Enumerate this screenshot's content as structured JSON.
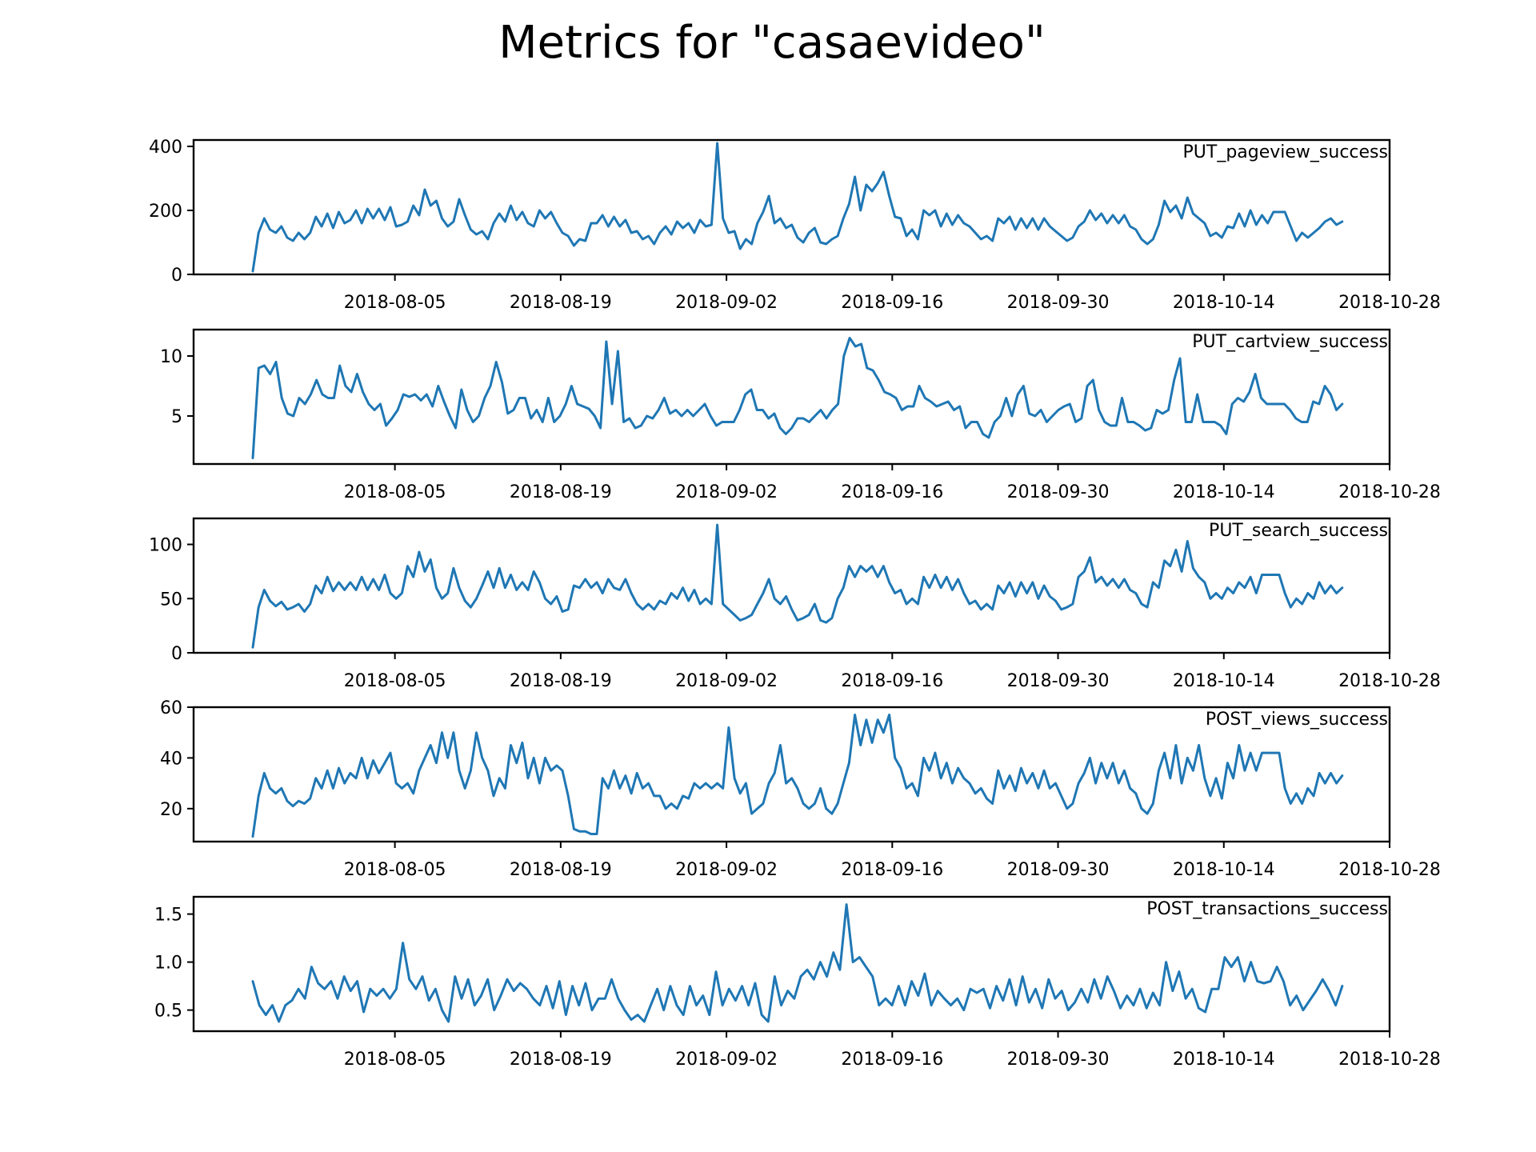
{
  "figure": {
    "title": "Metrics for \"casaevideo\"",
    "line_color": "#1f77b4"
  },
  "chart_data": [
    {
      "type": "line",
      "title": "",
      "xlabel": "",
      "ylabel": "",
      "series": [
        {
          "name": "PUT_pageview_success",
          "x_start": "2018-07-24",
          "x_end": "2018-10-24",
          "values": [
            10,
            130,
            175,
            140,
            130,
            150,
            115,
            105,
            130,
            110,
            130,
            180,
            150,
            190,
            145,
            195,
            160,
            170,
            200,
            160,
            205,
            175,
            205,
            170,
            210,
            150,
            155,
            165,
            215,
            185,
            265,
            215,
            230,
            175,
            150,
            165,
            235,
            185,
            140,
            125,
            135,
            110,
            160,
            190,
            165,
            215,
            170,
            195,
            160,
            150,
            200,
            175,
            195,
            160,
            130,
            120,
            90,
            110,
            105,
            160,
            160,
            185,
            150,
            180,
            150,
            170,
            130,
            135,
            110,
            120,
            95,
            130,
            150,
            125,
            165,
            145,
            160,
            130,
            170,
            150,
            155,
            410,
            175,
            130,
            135,
            80,
            110,
            95,
            160,
            195,
            245,
            160,
            175,
            145,
            155,
            115,
            100,
            130,
            145,
            100,
            95,
            110,
            120,
            175,
            220,
            305,
            200,
            280,
            260,
            285,
            320,
            245,
            180,
            175,
            120,
            140,
            110,
            200,
            185,
            200,
            150,
            190,
            155,
            185,
            160,
            150,
            130,
            110,
            120,
            105,
            175,
            160,
            180,
            140,
            175,
            145,
            175,
            140,
            175,
            150,
            135,
            120,
            105,
            115,
            150,
            165,
            200,
            170,
            190,
            160,
            185,
            160,
            185,
            150,
            140,
            110,
            95,
            110,
            155,
            230,
            195,
            215,
            175,
            240,
            190,
            175,
            160,
            120,
            130,
            115,
            150,
            145,
            190,
            150,
            200,
            155,
            185,
            160,
            195,
            195,
            195,
            150,
            105,
            130,
            115,
            130,
            145,
            165,
            175,
            155,
            165
          ]
        }
      ],
      "ylim": [
        0,
        420
      ],
      "yticks": [
        0,
        200,
        400
      ],
      "xticks": [
        "2018-08-05",
        "2018-08-19",
        "2018-09-02",
        "2018-09-16",
        "2018-09-30",
        "2018-10-14",
        "2018-10-28"
      ],
      "xlim": [
        "2018-07-19",
        "2018-10-28"
      ],
      "legend_position": "top-right"
    },
    {
      "type": "line",
      "title": "",
      "xlabel": "",
      "ylabel": "",
      "series": [
        {
          "name": "PUT_cartview_success",
          "x_start": "2018-07-24",
          "x_end": "2018-10-24",
          "values": [
            1.5,
            9.0,
            9.2,
            8.5,
            9.5,
            6.5,
            5.2,
            5.0,
            6.5,
            6.0,
            6.8,
            8.0,
            6.8,
            6.5,
            6.5,
            9.2,
            7.5,
            7.0,
            8.5,
            7.0,
            6.0,
            5.5,
            6.0,
            4.2,
            4.8,
            5.5,
            6.8,
            6.6,
            6.8,
            6.3,
            6.8,
            5.8,
            7.5,
            6.2,
            5.0,
            4.0,
            7.2,
            5.5,
            4.5,
            5.0,
            6.5,
            7.5,
            9.5,
            7.8,
            5.2,
            5.5,
            6.5,
            6.5,
            4.8,
            5.5,
            4.5,
            6.5,
            4.5,
            5.0,
            6.0,
            7.5,
            6.0,
            5.8,
            5.6,
            5.0,
            4.0,
            11.2,
            6.0,
            10.4,
            4.5,
            4.8,
            4.0,
            4.2,
            5.0,
            4.8,
            5.5,
            6.5,
            5.2,
            5.5,
            5.0,
            5.5,
            5.0,
            5.5,
            6.0,
            5.0,
            4.2,
            4.5,
            4.5,
            4.5,
            5.5,
            6.8,
            7.2,
            5.5,
            5.5,
            4.8,
            5.2,
            4.0,
            3.5,
            4.0,
            4.8,
            4.8,
            4.5,
            5.0,
            5.5,
            4.8,
            5.5,
            6.0,
            10.0,
            11.5,
            10.8,
            11.0,
            9.0,
            8.8,
            8.0,
            7.0,
            6.8,
            6.5,
            5.5,
            5.8,
            5.8,
            7.5,
            6.5,
            6.2,
            5.8,
            6.0,
            6.2,
            5.5,
            5.8,
            4.0,
            4.5,
            4.5,
            3.5,
            3.2,
            4.5,
            5.0,
            6.5,
            5.0,
            6.8,
            7.5,
            5.2,
            5.0,
            5.5,
            4.5,
            5.0,
            5.5,
            5.8,
            6.0,
            4.5,
            4.8,
            7.5,
            8.0,
            5.5,
            4.5,
            4.2,
            4.2,
            6.5,
            4.5,
            4.5,
            4.2,
            3.8,
            4.0,
            5.5,
            5.2,
            5.5,
            8.0,
            9.8,
            4.5,
            4.5,
            6.8,
            4.5,
            4.5,
            4.5,
            4.2,
            3.5,
            6.0,
            6.5,
            6.2,
            7.0,
            8.5,
            6.5,
            6.0,
            6.0,
            6.0,
            6.0,
            5.5,
            4.8,
            4.5,
            4.5,
            6.2,
            6.0,
            7.5,
            6.8,
            5.5,
            6.0
          ]
        }
      ],
      "ylim": [
        1,
        12.2
      ],
      "yticks": [
        5,
        10
      ],
      "xticks": [
        "2018-08-05",
        "2018-08-19",
        "2018-09-02",
        "2018-09-16",
        "2018-09-30",
        "2018-10-14",
        "2018-10-28"
      ],
      "xlim": [
        "2018-07-19",
        "2018-10-28"
      ],
      "legend_position": "top-right"
    },
    {
      "type": "line",
      "title": "",
      "xlabel": "",
      "ylabel": "",
      "series": [
        {
          "name": "PUT_search_success",
          "x_start": "2018-07-24",
          "x_end": "2018-10-24",
          "values": [
            5,
            42,
            58,
            48,
            43,
            47,
            40,
            42,
            45,
            38,
            45,
            62,
            55,
            70,
            57,
            65,
            58,
            65,
            58,
            70,
            58,
            68,
            58,
            72,
            55,
            50,
            55,
            80,
            70,
            93,
            75,
            86,
            60,
            50,
            55,
            78,
            60,
            48,
            42,
            50,
            62,
            75,
            60,
            78,
            60,
            72,
            58,
            65,
            58,
            75,
            65,
            50,
            45,
            52,
            38,
            40,
            62,
            60,
            68,
            60,
            65,
            55,
            68,
            60,
            58,
            68,
            55,
            45,
            40,
            45,
            40,
            48,
            45,
            55,
            50,
            60,
            48,
            58,
            45,
            50,
            45,
            118,
            45,
            40,
            35,
            30,
            32,
            35,
            45,
            55,
            68,
            50,
            45,
            52,
            40,
            30,
            32,
            35,
            45,
            30,
            28,
            32,
            50,
            60,
            80,
            70,
            80,
            75,
            80,
            70,
            80,
            65,
            55,
            58,
            45,
            50,
            45,
            70,
            60,
            72,
            60,
            70,
            58,
            68,
            55,
            45,
            48,
            40,
            45,
            40,
            62,
            55,
            65,
            52,
            65,
            55,
            65,
            50,
            62,
            52,
            48,
            40,
            42,
            45,
            70,
            75,
            88,
            65,
            70,
            62,
            68,
            60,
            68,
            58,
            55,
            45,
            42,
            65,
            60,
            85,
            80,
            95,
            75,
            103,
            78,
            70,
            65,
            50,
            55,
            50,
            60,
            55,
            65,
            60,
            70,
            55,
            72,
            72,
            72,
            72,
            55,
            42,
            50,
            45,
            55,
            50,
            65,
            55,
            62,
            55,
            60
          ]
        }
      ],
      "ylim": [
        0,
        124
      ],
      "yticks": [
        0,
        50,
        100
      ],
      "xticks": [
        "2018-08-05",
        "2018-08-19",
        "2018-09-02",
        "2018-09-16",
        "2018-09-30",
        "2018-10-14",
        "2018-10-28"
      ],
      "xlim": [
        "2018-07-19",
        "2018-10-28"
      ],
      "legend_position": "top-right"
    },
    {
      "type": "line",
      "title": "",
      "xlabel": "",
      "ylabel": "",
      "series": [
        {
          "name": "POST_views_success",
          "x_start": "2018-07-24",
          "x_end": "2018-10-24",
          "values": [
            9,
            25,
            34,
            28,
            26,
            28,
            23,
            21,
            23,
            22,
            24,
            32,
            28,
            35,
            28,
            36,
            30,
            34,
            32,
            40,
            32,
            39,
            34,
            38,
            42,
            30,
            28,
            30,
            26,
            35,
            40,
            45,
            38,
            50,
            40,
            50,
            35,
            28,
            35,
            50,
            40,
            35,
            25,
            32,
            28,
            45,
            38,
            46,
            32,
            40,
            30,
            40,
            35,
            37,
            35,
            25,
            12,
            11,
            11,
            10,
            10,
            32,
            28,
            35,
            28,
            33,
            26,
            34,
            28,
            30,
            25,
            25,
            20,
            22,
            20,
            25,
            24,
            30,
            28,
            30,
            28,
            30,
            28,
            52,
            32,
            26,
            30,
            18,
            20,
            22,
            30,
            34,
            45,
            30,
            32,
            28,
            22,
            20,
            22,
            28,
            20,
            18,
            22,
            30,
            38,
            57,
            45,
            55,
            46,
            55,
            50,
            57,
            40,
            36,
            28,
            30,
            25,
            40,
            35,
            42,
            32,
            38,
            30,
            36,
            32,
            30,
            26,
            28,
            24,
            22,
            35,
            28,
            33,
            27,
            36,
            30,
            34,
            28,
            35,
            28,
            30,
            25,
            20,
            22,
            30,
            34,
            40,
            30,
            38,
            32,
            38,
            30,
            35,
            28,
            26,
            20,
            18,
            22,
            35,
            42,
            32,
            45,
            30,
            40,
            35,
            45,
            32,
            25,
            32,
            24,
            38,
            32,
            45,
            35,
            42,
            35,
            42,
            42,
            42,
            42,
            28,
            22,
            26,
            22,
            28,
            25,
            34,
            30,
            34,
            30,
            33
          ]
        }
      ],
      "ylim": [
        7,
        60
      ],
      "yticks": [
        20,
        40,
        60
      ],
      "xticks": [
        "2018-08-05",
        "2018-08-19",
        "2018-09-02",
        "2018-09-16",
        "2018-09-30",
        "2018-10-14",
        "2018-10-28"
      ],
      "xlim": [
        "2018-07-19",
        "2018-10-28"
      ],
      "legend_position": "top-right"
    },
    {
      "type": "line",
      "title": "",
      "xlabel": "",
      "ylabel": "",
      "series": [
        {
          "name": "POST_transactions_success",
          "x_start": "2018-07-24",
          "x_end": "2018-10-24",
          "values": [
            0.8,
            0.55,
            0.45,
            0.55,
            0.38,
            0.55,
            0.6,
            0.72,
            0.62,
            0.95,
            0.78,
            0.72,
            0.8,
            0.62,
            0.85,
            0.7,
            0.8,
            0.48,
            0.72,
            0.65,
            0.72,
            0.62,
            0.72,
            1.2,
            0.82,
            0.72,
            0.85,
            0.6,
            0.72,
            0.5,
            0.38,
            0.85,
            0.62,
            0.82,
            0.55,
            0.65,
            0.82,
            0.5,
            0.65,
            0.82,
            0.7,
            0.78,
            0.72,
            0.62,
            0.55,
            0.75,
            0.52,
            0.8,
            0.45,
            0.75,
            0.55,
            0.78,
            0.5,
            0.62,
            0.62,
            0.82,
            0.62,
            0.5,
            0.4,
            0.45,
            0.38,
            0.55,
            0.72,
            0.5,
            0.75,
            0.55,
            0.45,
            0.75,
            0.55,
            0.65,
            0.45,
            0.9,
            0.55,
            0.72,
            0.6,
            0.75,
            0.55,
            0.78,
            0.45,
            0.38,
            0.85,
            0.55,
            0.7,
            0.62,
            0.85,
            0.92,
            0.82,
            1.0,
            0.85,
            1.1,
            0.92,
            1.6,
            1.0,
            1.05,
            0.95,
            0.85,
            0.55,
            0.62,
            0.55,
            0.75,
            0.55,
            0.8,
            0.65,
            0.88,
            0.55,
            0.7,
            0.62,
            0.55,
            0.62,
            0.5,
            0.72,
            0.68,
            0.72,
            0.52,
            0.75,
            0.6,
            0.82,
            0.55,
            0.85,
            0.58,
            0.72,
            0.52,
            0.82,
            0.62,
            0.7,
            0.5,
            0.58,
            0.72,
            0.58,
            0.82,
            0.62,
            0.85,
            0.7,
            0.52,
            0.65,
            0.55,
            0.72,
            0.52,
            0.68,
            0.55,
            1.0,
            0.7,
            0.9,
            0.62,
            0.72,
            0.52,
            0.48,
            0.72,
            0.72,
            1.05,
            0.95,
            1.05,
            0.8,
            1.0,
            0.8,
            0.78,
            0.8,
            0.95,
            0.8,
            0.55,
            0.65,
            0.5,
            0.6,
            0.7,
            0.82,
            0.7,
            0.55,
            0.75
          ]
        }
      ],
      "ylim": [
        0.28,
        1.68
      ],
      "yticks": [
        0.5,
        1.0,
        1.5
      ],
      "xticks": [
        "2018-08-05",
        "2018-08-19",
        "2018-09-02",
        "2018-09-16",
        "2018-09-30",
        "2018-10-14",
        "2018-10-28"
      ],
      "xlim": [
        "2018-07-19",
        "2018-10-28"
      ],
      "legend_position": "top-right"
    }
  ]
}
